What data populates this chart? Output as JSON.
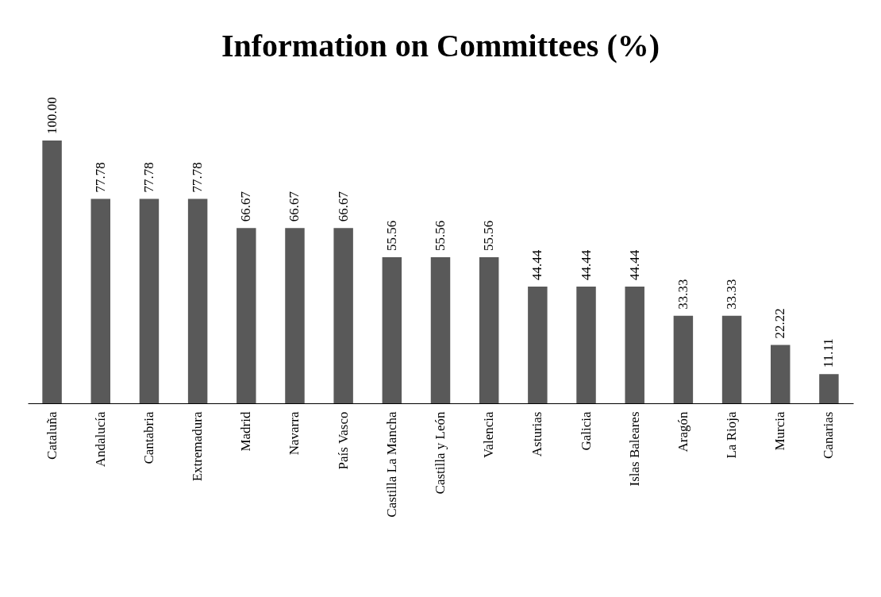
{
  "chart_data": {
    "type": "bar",
    "title": "Information on Committees (%)",
    "categories": [
      "Cataluña",
      "Andalucía",
      "Cantabria",
      "Extremadura",
      "Madrid",
      "Navarra",
      "País Vasco",
      "Castilla La Mancha",
      "Castilla y León",
      "Valencia",
      "Asturias",
      "Galicia",
      "Islas Baleares",
      "Aragón",
      "La Rioja",
      "Murcia",
      "Canarias"
    ],
    "values": [
      100.0,
      77.78,
      77.78,
      77.78,
      66.67,
      66.67,
      66.67,
      55.56,
      55.56,
      55.56,
      44.44,
      44.44,
      44.44,
      33.33,
      33.33,
      22.22,
      11.11
    ],
    "value_labels": [
      "100.00",
      "77.78",
      "77.78",
      "77.78",
      "66.67",
      "66.67",
      "66.67",
      "55.56",
      "55.56",
      "55.56",
      "44.44",
      "44.44",
      "44.44",
      "33.33",
      "33.33",
      "22.22",
      "11.11"
    ],
    "color": "#595959",
    "grid": false
  }
}
